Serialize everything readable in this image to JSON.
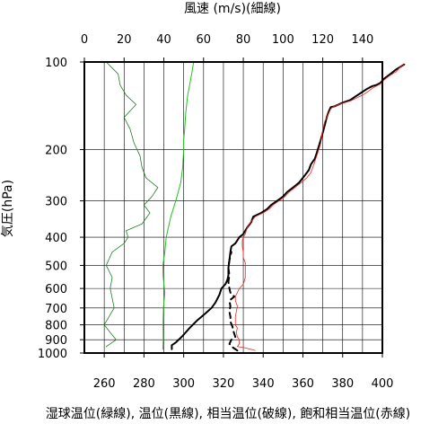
{
  "chart_data": {
    "type": "line",
    "title": "",
    "top_axis": {
      "label": "風速 (m/s)(細線)",
      "ticks": [
        0,
        20,
        40,
        60,
        80,
        100,
        120,
        140
      ],
      "range": [
        0,
        150
      ]
    },
    "bottom_axis": {
      "label": "湿球温位(緑線), 温位(黒線), 相当温位(破線), 飽和相当温位(赤線)",
      "ticks": [
        260,
        280,
        300,
        320,
        340,
        360,
        380,
        400
      ],
      "range": [
        250,
        400
      ]
    },
    "left_axis": {
      "label": "気圧(hPa)",
      "ticks": [
        100,
        200,
        300,
        400,
        500,
        600,
        700,
        800,
        900,
        1000
      ],
      "range": [
        1000,
        100
      ],
      "scale": "log"
    },
    "grid": true,
    "series": [
      {
        "color": "#1f7f1f",
        "x_axis": "top",
        "stroke": "thin",
        "points": [
          [
            11,
            950
          ],
          [
            16,
            900
          ],
          [
            13,
            850
          ],
          [
            10,
            800
          ],
          [
            15,
            700
          ],
          [
            13,
            600
          ],
          [
            14,
            550
          ],
          [
            11,
            500
          ],
          [
            14,
            450
          ],
          [
            20,
            420
          ],
          [
            22,
            400
          ],
          [
            21,
            380
          ],
          [
            29,
            360
          ],
          [
            33,
            330
          ],
          [
            30,
            310
          ],
          [
            34,
            290
          ],
          [
            37,
            270
          ],
          [
            31,
            250
          ],
          [
            29,
            230
          ],
          [
            28,
            210
          ],
          [
            25,
            190
          ],
          [
            23,
            170
          ],
          [
            20,
            155
          ],
          [
            26,
            140
          ],
          [
            21,
            130
          ],
          [
            18,
            120
          ],
          [
            17,
            110
          ],
          [
            11,
            100
          ]
        ]
      },
      {
        "color": "#22c022",
        "x_axis": "bottom",
        "stroke": "medium",
        "points": [
          [
            289.5,
            970
          ],
          [
            289.7,
            900
          ],
          [
            289.6,
            800
          ],
          [
            289.8,
            700
          ],
          [
            290.5,
            620
          ],
          [
            289.7,
            550
          ],
          [
            289.5,
            500
          ],
          [
            290.5,
            450
          ],
          [
            291.2,
            400
          ],
          [
            293.5,
            340
          ],
          [
            296,
            300
          ],
          [
            298.5,
            260
          ],
          [
            299.5,
            230
          ],
          [
            300,
            200
          ],
          [
            300,
            185
          ],
          [
            300.5,
            170
          ],
          [
            301,
            150
          ],
          [
            302,
            130
          ],
          [
            303,
            120
          ],
          [
            304,
            110
          ],
          [
            305,
            100
          ]
        ]
      },
      {
        "color": "#000000",
        "x_axis": "bottom",
        "stroke": "thick",
        "points": [
          [
            294,
            970
          ],
          [
            294,
            940
          ],
          [
            296,
            920
          ],
          [
            299,
            880
          ],
          [
            303,
            820
          ],
          [
            307,
            770
          ],
          [
            311,
            730
          ],
          [
            314,
            700
          ],
          [
            316,
            670
          ],
          [
            318,
            630
          ],
          [
            319,
            600
          ],
          [
            321,
            580
          ],
          [
            322,
            560
          ],
          [
            322.5,
            540
          ],
          [
            322.5,
            510
          ],
          [
            323,
            480
          ],
          [
            323.5,
            450
          ],
          [
            324,
            430
          ],
          [
            326,
            420
          ],
          [
            327,
            410
          ],
          [
            328,
            400
          ],
          [
            330,
            390
          ],
          [
            332,
            370
          ],
          [
            334,
            355
          ],
          [
            335,
            340
          ],
          [
            339,
            330
          ],
          [
            342,
            320
          ],
          [
            344,
            310
          ],
          [
            347,
            300
          ],
          [
            350,
            290
          ],
          [
            352,
            280
          ],
          [
            355,
            270
          ],
          [
            358,
            260
          ],
          [
            361,
            245
          ],
          [
            363,
            235
          ],
          [
            364,
            225
          ],
          [
            366,
            215
          ],
          [
            367,
            205
          ],
          [
            368,
            195
          ],
          [
            369,
            185
          ],
          [
            370,
            175
          ],
          [
            371,
            165
          ],
          [
            372,
            155
          ],
          [
            373,
            148
          ],
          [
            374,
            143
          ],
          [
            376,
            142
          ],
          [
            380,
            138
          ],
          [
            384,
            135
          ],
          [
            386,
            132
          ],
          [
            389,
            128
          ],
          [
            392,
            124
          ],
          [
            395,
            121
          ],
          [
            397,
            120
          ],
          [
            399,
            118
          ],
          [
            401,
            114
          ],
          [
            404,
            110
          ],
          [
            407,
            106
          ],
          [
            411,
            102
          ]
        ]
      },
      {
        "color": "#000000",
        "x_axis": "bottom",
        "stroke": "dashed",
        "points": [
          [
            327,
            980
          ],
          [
            325,
            960
          ],
          [
            323,
            930
          ],
          [
            324,
            900
          ],
          [
            326,
            880
          ],
          [
            325.5,
            860
          ],
          [
            325,
            840
          ],
          [
            324.5,
            810
          ],
          [
            323.5,
            780
          ],
          [
            323.5,
            750
          ],
          [
            323,
            720
          ],
          [
            323.5,
            690
          ],
          [
            323,
            660
          ],
          [
            325.5,
            640
          ],
          [
            323.5,
            620
          ],
          [
            323,
            600
          ],
          [
            322.5,
            570
          ],
          [
            323,
            540
          ],
          [
            322.5,
            510
          ],
          [
            323,
            480
          ],
          [
            324,
            450
          ]
        ]
      },
      {
        "color": "#ff2020",
        "x_axis": "bottom",
        "stroke": "thin",
        "points": [
          [
            336,
            980
          ],
          [
            331,
            960
          ],
          [
            327,
            950
          ],
          [
            328,
            930
          ],
          [
            328,
            900
          ],
          [
            327,
            880
          ],
          [
            326.5,
            850
          ],
          [
            327,
            820
          ],
          [
            326,
            800
          ],
          [
            326,
            770
          ],
          [
            326,
            750
          ],
          [
            326.5,
            720
          ],
          [
            327,
            690
          ],
          [
            326,
            660
          ],
          [
            326,
            640
          ],
          [
            327,
            620
          ],
          [
            328,
            600
          ],
          [
            330,
            580
          ],
          [
            331,
            550
          ],
          [
            331,
            510
          ],
          [
            331,
            490
          ],
          [
            330,
            470
          ],
          [
            330,
            450
          ],
          [
            329.5,
            430
          ],
          [
            329.5,
            410
          ],
          [
            330,
            400
          ],
          [
            331,
            390
          ],
          [
            332,
            370
          ],
          [
            333,
            360
          ],
          [
            336,
            340
          ],
          [
            340,
            330
          ],
          [
            343,
            320
          ],
          [
            345,
            310
          ],
          [
            348,
            300
          ],
          [
            351,
            290
          ],
          [
            353,
            280
          ],
          [
            356,
            270
          ],
          [
            359,
            260
          ],
          [
            362,
            250
          ],
          [
            364,
            240
          ],
          [
            365,
            230
          ],
          [
            366,
            220
          ],
          [
            367,
            210
          ],
          [
            368,
            200
          ],
          [
            369,
            190
          ],
          [
            369.5,
            180
          ],
          [
            370,
            170
          ],
          [
            371,
            160
          ],
          [
            372,
            155
          ],
          [
            373,
            150
          ],
          [
            374,
            145
          ],
          [
            375,
            143
          ],
          [
            378,
            140
          ],
          [
            381,
            138
          ],
          [
            384,
            136
          ],
          [
            387,
            133
          ],
          [
            390,
            130
          ],
          [
            393,
            126
          ],
          [
            395,
            123
          ],
          [
            397,
            121
          ],
          [
            399,
            119
          ],
          [
            401,
            115
          ],
          [
            404,
            111
          ],
          [
            407,
            108
          ],
          [
            409,
            104
          ],
          [
            411,
            102
          ]
        ]
      }
    ]
  }
}
